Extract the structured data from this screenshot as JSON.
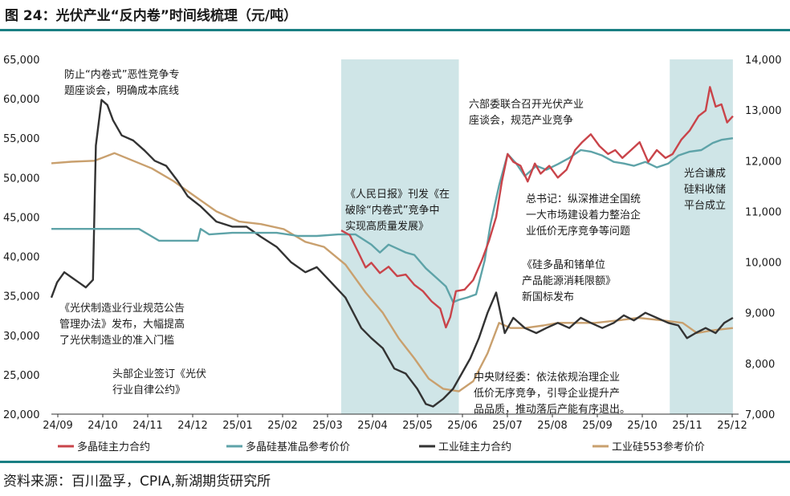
{
  "header": {
    "title": "图 24：光伏产业“反内卷”时间线梳理（元/吨）"
  },
  "footer": {
    "source": "资料来源：百川盈孚，CPIA,新湖期货研究所"
  },
  "colors": {
    "polysilicon_main": "#c9444a",
    "polysilicon_ref": "#5ea3a8",
    "industrial_main": "#333333",
    "industrial_553": "#c9a06e",
    "shade": "#cfe5e7",
    "rule": "#1a7f83"
  },
  "chart_data": {
    "type": "line",
    "x_ticks": [
      "24/09",
      "24/10",
      "24/11",
      "24/12",
      "25/01",
      "25/02",
      "25/03",
      "25/04",
      "25/05",
      "25/06",
      "25/07",
      "25/08",
      "25/09",
      "25/10",
      "25/11",
      "25/12"
    ],
    "y_left": {
      "lim": [
        20000,
        65000
      ],
      "ticks": [
        "20,000",
        "25,000",
        "30,000",
        "35,000",
        "40,000",
        "45,000",
        "50,000",
        "55,000",
        "60,000",
        "65,000"
      ]
    },
    "y_right": {
      "lim": [
        7000,
        14000
      ],
      "ticks": [
        "7,000",
        "8,000",
        "9,000",
        "10,000",
        "11,000",
        "12,000",
        "13,000",
        "14,000"
      ]
    },
    "shaded_periods": [
      [
        "2025-03-22",
        "2025-06-12"
      ],
      [
        "2025-11-06",
        "2025-12-20"
      ]
    ],
    "series": [
      {
        "name": "多晶硅主力合约",
        "axis": "left",
        "points": [
          [
            "2025-03-22",
            43300
          ],
          [
            "2025-03-28",
            42700
          ],
          [
            "2025-04-03",
            40500
          ],
          [
            "2025-04-08",
            38600
          ],
          [
            "2025-04-12",
            39200
          ],
          [
            "2025-04-18",
            37900
          ],
          [
            "2025-04-24",
            38700
          ],
          [
            "2025-04-30",
            37500
          ],
          [
            "2025-05-06",
            37700
          ],
          [
            "2025-05-12",
            36400
          ],
          [
            "2025-05-18",
            35600
          ],
          [
            "2025-05-24",
            34300
          ],
          [
            "2025-05-30",
            33400
          ],
          [
            "2025-06-03",
            31000
          ],
          [
            "2025-06-06",
            32300
          ],
          [
            "2025-06-10",
            35600
          ],
          [
            "2025-06-16",
            35800
          ],
          [
            "2025-06-22",
            37000
          ],
          [
            "2025-06-28",
            39500
          ],
          [
            "2025-07-03",
            42000
          ],
          [
            "2025-07-08",
            45000
          ],
          [
            "2025-07-12",
            49500
          ],
          [
            "2025-07-16",
            53000
          ],
          [
            "2025-07-20",
            52000
          ],
          [
            "2025-07-25",
            51500
          ],
          [
            "2025-07-30",
            49500
          ],
          [
            "2025-08-04",
            51800
          ],
          [
            "2025-08-08",
            50500
          ],
          [
            "2025-08-14",
            51500
          ],
          [
            "2025-08-20",
            50000
          ],
          [
            "2025-08-26",
            51000
          ],
          [
            "2025-09-01",
            53500
          ],
          [
            "2025-09-06",
            54500
          ],
          [
            "2025-09-12",
            55500
          ],
          [
            "2025-09-18",
            54000
          ],
          [
            "2025-09-24",
            53000
          ],
          [
            "2025-09-29",
            53500
          ],
          [
            "2025-10-04",
            52500
          ],
          [
            "2025-10-10",
            53500
          ],
          [
            "2025-10-16",
            54500
          ],
          [
            "2025-10-22",
            52000
          ],
          [
            "2025-10-28",
            53500
          ],
          [
            "2025-11-03",
            52500
          ],
          [
            "2025-11-08",
            53000
          ],
          [
            "2025-11-14",
            54800
          ],
          [
            "2025-11-20",
            56000
          ],
          [
            "2025-11-26",
            57800
          ],
          [
            "2025-12-01",
            58500
          ],
          [
            "2025-12-04",
            61500
          ],
          [
            "2025-12-08",
            59000
          ],
          [
            "2025-12-12",
            59300
          ],
          [
            "2025-12-16",
            57000
          ],
          [
            "2025-12-20",
            57800
          ]
        ]
      },
      {
        "name": "多晶硅基准品参考价价",
        "axis": "left",
        "points": [
          [
            "2024-09-01",
            43500
          ],
          [
            "2024-09-15",
            43500
          ],
          [
            "2024-10-01",
            43500
          ],
          [
            "2024-10-15",
            43500
          ],
          [
            "2024-11-01",
            43500
          ],
          [
            "2024-11-15",
            42000
          ],
          [
            "2024-12-01",
            42000
          ],
          [
            "2024-12-12",
            42000
          ],
          [
            "2024-12-14",
            43500
          ],
          [
            "2024-12-20",
            42800
          ],
          [
            "2025-01-05",
            43000
          ],
          [
            "2025-01-20",
            43000
          ],
          [
            "2025-02-05",
            43000
          ],
          [
            "2025-02-20",
            42600
          ],
          [
            "2025-03-05",
            42600
          ],
          [
            "2025-03-20",
            42800
          ],
          [
            "2025-04-01",
            42800
          ],
          [
            "2025-04-06",
            42200
          ],
          [
            "2025-04-12",
            41500
          ],
          [
            "2025-04-18",
            40500
          ],
          [
            "2025-04-24",
            41500
          ],
          [
            "2025-04-30",
            41000
          ],
          [
            "2025-05-06",
            40500
          ],
          [
            "2025-05-12",
            40200
          ],
          [
            "2025-05-20",
            38500
          ],
          [
            "2025-05-28",
            37200
          ],
          [
            "2025-06-03",
            36200
          ],
          [
            "2025-06-08",
            34200
          ],
          [
            "2025-06-12",
            34500
          ],
          [
            "2025-06-18",
            34800
          ],
          [
            "2025-06-24",
            35200
          ],
          [
            "2025-06-30",
            39500
          ],
          [
            "2025-07-04",
            44000
          ],
          [
            "2025-07-10",
            49000
          ],
          [
            "2025-07-16",
            53000
          ],
          [
            "2025-07-22",
            51800
          ],
          [
            "2025-07-28",
            50200
          ],
          [
            "2025-08-05",
            51500
          ],
          [
            "2025-08-12",
            51000
          ],
          [
            "2025-08-20",
            51700
          ],
          [
            "2025-08-28",
            52500
          ],
          [
            "2025-09-05",
            53500
          ],
          [
            "2025-09-12",
            53300
          ],
          [
            "2025-09-20",
            52800
          ],
          [
            "2025-09-28",
            52000
          ],
          [
            "2025-10-05",
            51800
          ],
          [
            "2025-10-12",
            51500
          ],
          [
            "2025-10-20",
            52000
          ],
          [
            "2025-10-28",
            51300
          ],
          [
            "2025-11-05",
            51800
          ],
          [
            "2025-11-12",
            52800
          ],
          [
            "2025-11-20",
            53300
          ],
          [
            "2025-11-28",
            53500
          ],
          [
            "2025-12-06",
            54400
          ],
          [
            "2025-12-12",
            54800
          ],
          [
            "2025-12-20",
            55000
          ]
        ]
      },
      {
        "name": "工业硅主力合约",
        "axis": "right",
        "points": [
          [
            "2024-09-01",
            9300
          ],
          [
            "2024-09-05",
            9600
          ],
          [
            "2024-09-10",
            9800
          ],
          [
            "2024-09-15",
            9700
          ],
          [
            "2024-09-20",
            9600
          ],
          [
            "2024-09-25",
            9500
          ],
          [
            "2024-09-30",
            9650
          ],
          [
            "2024-10-02",
            12300
          ],
          [
            "2024-10-06",
            13200
          ],
          [
            "2024-10-10",
            13100
          ],
          [
            "2024-10-14",
            12800
          ],
          [
            "2024-10-20",
            12500
          ],
          [
            "2024-10-28",
            12400
          ],
          [
            "2024-11-05",
            12200
          ],
          [
            "2024-11-12",
            12000
          ],
          [
            "2024-11-20",
            11900
          ],
          [
            "2024-11-28",
            11600
          ],
          [
            "2024-12-05",
            11300
          ],
          [
            "2024-12-14",
            11100
          ],
          [
            "2024-12-25",
            10800
          ],
          [
            "2025-01-05",
            10700
          ],
          [
            "2025-01-15",
            10700
          ],
          [
            "2025-01-25",
            10500
          ],
          [
            "2025-02-05",
            10300
          ],
          [
            "2025-02-15",
            10000
          ],
          [
            "2025-02-25",
            9800
          ],
          [
            "2025-03-05",
            9900
          ],
          [
            "2025-03-15",
            9600
          ],
          [
            "2025-03-25",
            9300
          ],
          [
            "2025-04-05",
            8700
          ],
          [
            "2025-04-12",
            8500
          ],
          [
            "2025-04-20",
            8300
          ],
          [
            "2025-04-28",
            7900
          ],
          [
            "2025-05-06",
            7800
          ],
          [
            "2025-05-14",
            7500
          ],
          [
            "2025-05-20",
            7200
          ],
          [
            "2025-05-25",
            7150
          ],
          [
            "2025-06-01",
            7300
          ],
          [
            "2025-06-08",
            7500
          ],
          [
            "2025-06-14",
            7800
          ],
          [
            "2025-06-20",
            8100
          ],
          [
            "2025-06-26",
            8500
          ],
          [
            "2025-07-02",
            9000
          ],
          [
            "2025-07-08",
            9400
          ],
          [
            "2025-07-14",
            8600
          ],
          [
            "2025-07-20",
            8900
          ],
          [
            "2025-07-28",
            8700
          ],
          [
            "2025-08-05",
            8600
          ],
          [
            "2025-08-12",
            8700
          ],
          [
            "2025-08-20",
            8800
          ],
          [
            "2025-08-28",
            8700
          ],
          [
            "2025-09-05",
            8900
          ],
          [
            "2025-09-12",
            8800
          ],
          [
            "2025-09-20",
            8700
          ],
          [
            "2025-09-28",
            8800
          ],
          [
            "2025-10-05",
            8950
          ],
          [
            "2025-10-12",
            8850
          ],
          [
            "2025-10-20",
            9000
          ],
          [
            "2025-10-28",
            8900
          ],
          [
            "2025-11-05",
            8800
          ],
          [
            "2025-11-12",
            8750
          ],
          [
            "2025-11-18",
            8500
          ],
          [
            "2025-11-24",
            8600
          ],
          [
            "2025-12-01",
            8700
          ],
          [
            "2025-12-08",
            8600
          ],
          [
            "2025-12-14",
            8800
          ],
          [
            "2025-12-20",
            8900
          ]
        ]
      },
      {
        "name": "工业硅553参考价价",
        "axis": "right",
        "points": [
          [
            "2024-09-01",
            11950
          ],
          [
            "2024-09-15",
            11980
          ],
          [
            "2024-10-01",
            12000
          ],
          [
            "2024-10-15",
            12150
          ],
          [
            "2024-10-28",
            12000
          ],
          [
            "2024-11-10",
            11850
          ],
          [
            "2024-11-25",
            11600
          ],
          [
            "2024-12-10",
            11300
          ],
          [
            "2024-12-25",
            11000
          ],
          [
            "2025-01-10",
            10800
          ],
          [
            "2025-01-25",
            10750
          ],
          [
            "2025-02-10",
            10650
          ],
          [
            "2025-02-25",
            10400
          ],
          [
            "2025-03-10",
            10300
          ],
          [
            "2025-03-25",
            9950
          ],
          [
            "2025-04-08",
            9400
          ],
          [
            "2025-04-20",
            9000
          ],
          [
            "2025-05-01",
            8500
          ],
          [
            "2025-05-12",
            8100
          ],
          [
            "2025-05-22",
            7700
          ],
          [
            "2025-06-01",
            7500
          ],
          [
            "2025-06-12",
            7450
          ],
          [
            "2025-06-22",
            7650
          ],
          [
            "2025-07-02",
            8200
          ],
          [
            "2025-07-10",
            8800
          ],
          [
            "2025-07-18",
            8700
          ],
          [
            "2025-07-28",
            8700
          ],
          [
            "2025-08-10",
            8750
          ],
          [
            "2025-08-20",
            8800
          ],
          [
            "2025-09-01",
            8800
          ],
          [
            "2025-09-15",
            8800
          ],
          [
            "2025-10-01",
            8850
          ],
          [
            "2025-10-15",
            8900
          ],
          [
            "2025-11-01",
            8850
          ],
          [
            "2025-11-15",
            8800
          ],
          [
            "2025-11-25",
            8600
          ],
          [
            "2025-12-05",
            8650
          ],
          [
            "2025-12-20",
            8700
          ]
        ]
      }
    ],
    "annotations": [
      {
        "lines": [
          "防止“内卷式”恶性竞争专",
          "题座谈会，明确成本底线"
        ]
      },
      {
        "lines": [
          "六部委联合召开光伏产业",
          "座谈会，规范产业竞争"
        ]
      },
      {
        "lines": [
          "《人民日报》刊发《在",
          "破除“内卷式”竞争中",
          "实现高质量发展》"
        ]
      },
      {
        "lines": [
          "光合谦成",
          "硅料收储",
          "平台成立"
        ]
      },
      {
        "lines": [
          "总书记：纵深推进全国统",
          "一大市场建设着力整治企",
          "业低价无序竞争等问题"
        ]
      },
      {
        "lines": [
          "《硅多晶和锗单位",
          "产品能源消耗限额》",
          "新国标发布"
        ]
      },
      {
        "lines": [
          "《光伏制造业行业规范公告",
          "管理办法》发布，大幅提高",
          "了光伏制造业的准入门槛"
        ]
      },
      {
        "lines": [
          "头部企业签订《光伏",
          "行业自律公约》"
        ]
      },
      {
        "lines": [
          "中央财经委：依法依规治理企业",
          "低价无序竞争，引导企业提升产",
          "品品质，推动落后产能有序退出。"
        ]
      }
    ]
  }
}
